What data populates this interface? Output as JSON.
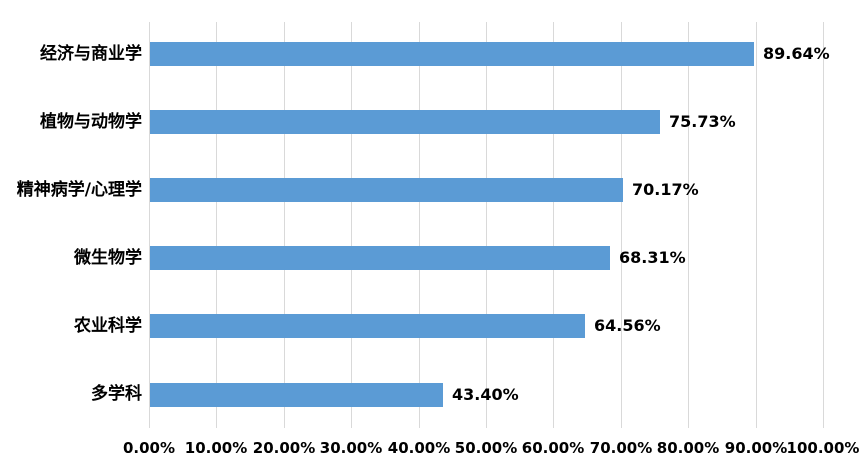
{
  "chart_data": {
    "type": "bar",
    "orientation": "horizontal",
    "title": "",
    "xlabel": "",
    "ylabel": "",
    "categories": [
      "经济与商业学",
      "植物与动物学",
      "精神病学/心理学",
      "微生物学",
      "农业科学",
      "多学科"
    ],
    "values": [
      89.64,
      75.73,
      70.17,
      68.31,
      64.56,
      43.4
    ],
    "data_labels": [
      "89.64%",
      "75.73%",
      "70.17%",
      "68.31%",
      "64.56%",
      "43.40%"
    ],
    "x_tick_labels": [
      "0.00%",
      "10.00%",
      "20.00%",
      "30.00%",
      "40.00%",
      "50.00%",
      "60.00%",
      "70.00%",
      "80.00%",
      "90.00%",
      "100.00%"
    ],
    "x_tick_values": [
      0,
      10,
      20,
      30,
      40,
      50,
      60,
      70,
      80,
      90,
      100
    ],
    "xlim": [
      0,
      100
    ],
    "grid": true,
    "legend": false,
    "bar_color": "#5B9BD5",
    "gridline_color": "#D9D9D9",
    "text_color": "#000000",
    "background_color": "#FFFFFF"
  }
}
